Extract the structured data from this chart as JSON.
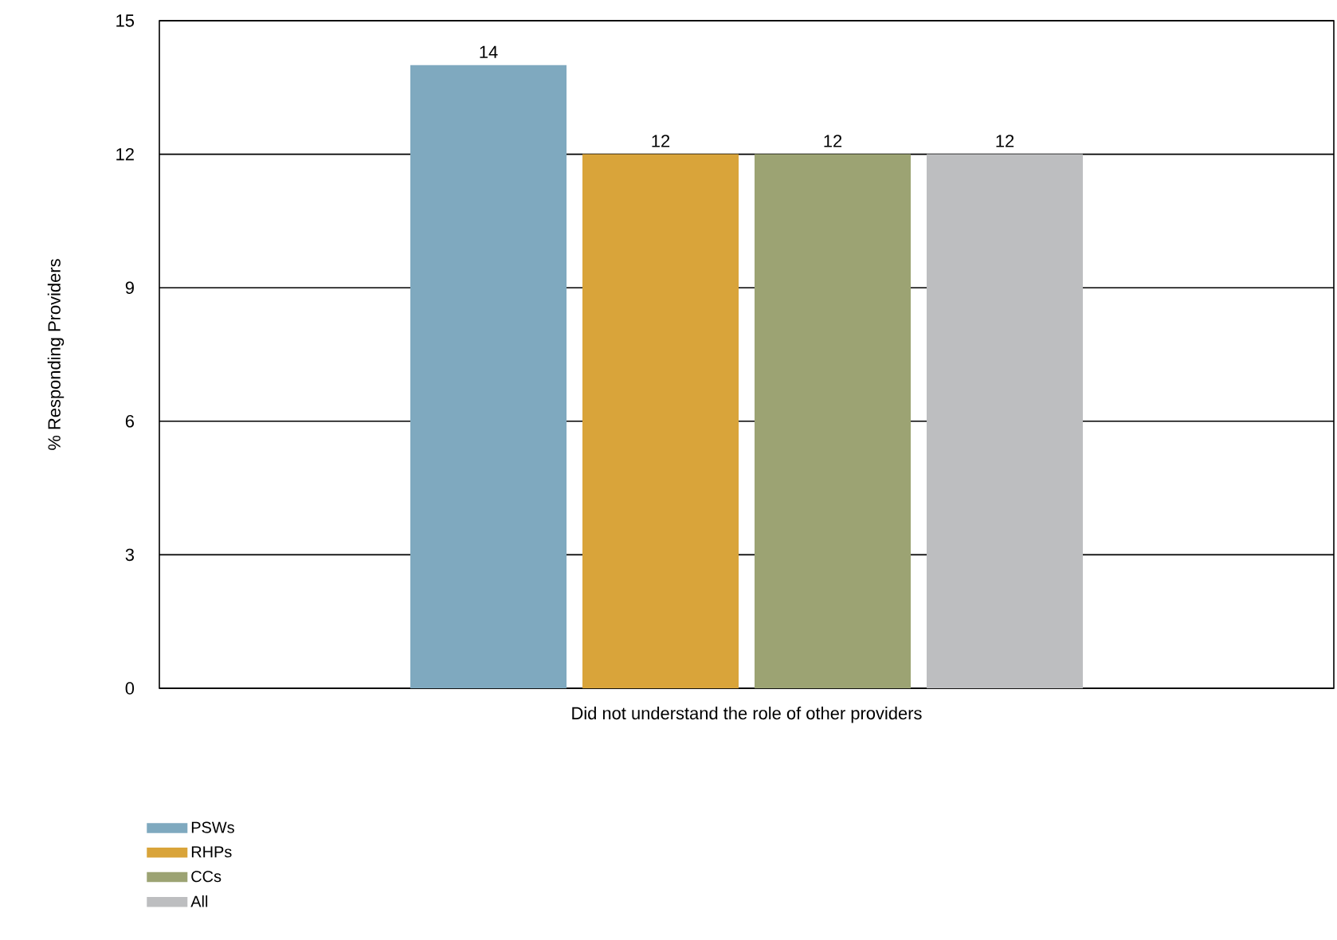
{
  "chart_data": {
    "type": "bar",
    "ylabel": "% Responding Providers",
    "categories": [
      "Did not understand the role of other providers"
    ],
    "series": [
      {
        "name": "PSWs",
        "color": "#7fa9bf",
        "values": [
          14
        ]
      },
      {
        "name": "RHPs",
        "color": "#d9a43a",
        "values": [
          12
        ]
      },
      {
        "name": "CCs",
        "color": "#9ca373",
        "values": [
          12
        ]
      },
      {
        "name": "All",
        "color": "#bdbec0",
        "values": [
          12
        ]
      }
    ],
    "ylim": [
      0,
      15
    ],
    "yticks": [
      0,
      3,
      6,
      9,
      12,
      15
    ],
    "grid": "y",
    "legend": "bottom left",
    "data_labels": true
  }
}
